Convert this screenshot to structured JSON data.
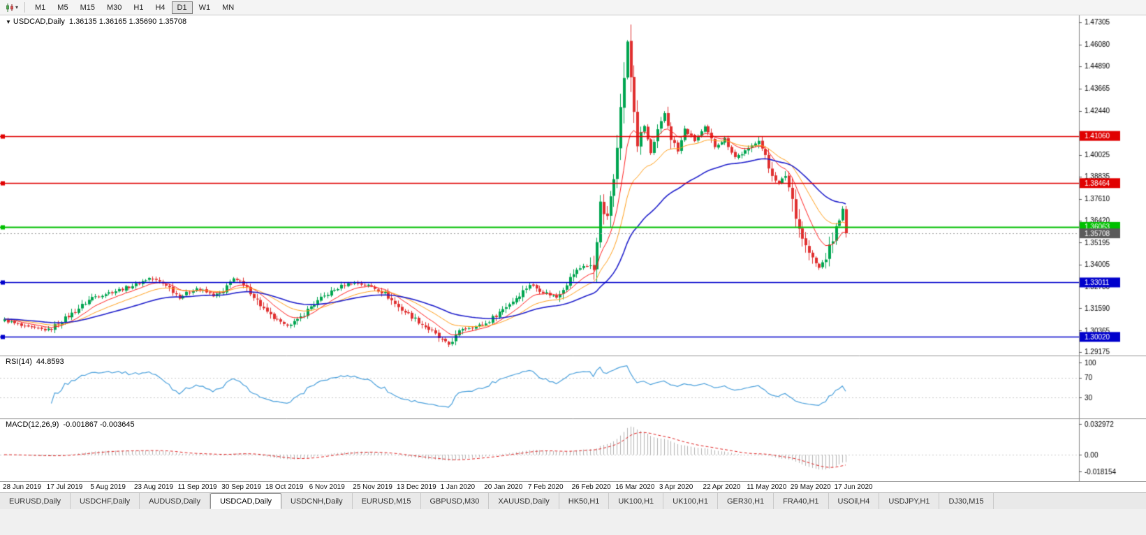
{
  "toolbar": {
    "chart_type_icon": "candlestick-chart-icon",
    "timeframes": [
      {
        "label": "M1",
        "active": false
      },
      {
        "label": "M5",
        "active": false
      },
      {
        "label": "M15",
        "active": false
      },
      {
        "label": "M30",
        "active": false
      },
      {
        "label": "H1",
        "active": false
      },
      {
        "label": "H4",
        "active": false
      },
      {
        "label": "D1",
        "active": true
      },
      {
        "label": "W1",
        "active": false
      },
      {
        "label": "MN",
        "active": false
      }
    ]
  },
  "panels": {
    "main": {
      "symbol": "USDCAD,Daily",
      "ohlc": "1.36135 1.36165 1.35690 1.35708"
    },
    "rsi": {
      "label": "RSI(14)",
      "value": "44.8593"
    },
    "macd": {
      "label": "MACD(12,26,9)",
      "values": "-0.001867 -0.003645"
    }
  },
  "tabs": {
    "items": [
      {
        "label": "EURUSD,Daily",
        "active": false
      },
      {
        "label": "USDCHF,Daily",
        "active": false
      },
      {
        "label": "AUDUSD,Daily",
        "active": false
      },
      {
        "label": "USDCAD,Daily",
        "active": true
      },
      {
        "label": "USDCNH,Daily",
        "active": false
      },
      {
        "label": "EURUSD,M15",
        "active": false
      },
      {
        "label": "GBPUSD,M30",
        "active": false
      },
      {
        "label": "XAUUSD,Daily",
        "active": false
      },
      {
        "label": "HK50,H1",
        "active": false
      },
      {
        "label": "UK100,H1",
        "active": false
      },
      {
        "label": "UK100,H1",
        "active": false
      },
      {
        "label": "GER30,H1",
        "active": false
      },
      {
        "label": "FRA40,H1",
        "active": false
      },
      {
        "label": "USOil,H4",
        "active": false
      },
      {
        "label": "USDJPY,H1",
        "active": false
      },
      {
        "label": "DJ30,M15",
        "active": false
      }
    ]
  },
  "chart_data": {
    "type": "candlestick",
    "symbol": "USDCAD",
    "timeframe": "Daily",
    "candle_count": 251,
    "bar_spacing": 4.82,
    "last_close": 1.35708,
    "price_axis": {
      "top": 1.4768,
      "bottom": 1.29,
      "ticks": [
        "1.47305",
        "1.46080",
        "1.44890",
        "1.43665",
        "1.42440",
        "1.40025",
        "1.38835",
        "1.37610",
        "1.36420",
        "1.35195",
        "1.34005",
        "1.32780",
        "1.31590",
        "1.30365",
        "1.29175"
      ]
    },
    "close_path": [
      [
        0,
        1.3095
      ],
      [
        6,
        1.3055
      ],
      [
        13,
        1.304
      ],
      [
        20,
        1.313
      ],
      [
        26,
        1.322
      ],
      [
        33,
        1.3255
      ],
      [
        39,
        1.329
      ],
      [
        43,
        1.3325
      ],
      [
        48,
        1.329
      ],
      [
        52,
        1.322
      ],
      [
        57,
        1.327
      ],
      [
        62,
        1.323
      ],
      [
        65,
        1.3245
      ],
      [
        68,
        1.333
      ],
      [
        73,
        1.325
      ],
      [
        78,
        1.313
      ],
      [
        83,
        1.3065
      ],
      [
        87,
        1.309
      ],
      [
        91,
        1.317
      ],
      [
        96,
        1.324
      ],
      [
        101,
        1.329
      ],
      [
        104,
        1.33
      ],
      [
        109,
        1.328
      ],
      [
        113,
        1.324
      ],
      [
        117,
        1.3165
      ],
      [
        122,
        1.31
      ],
      [
        127,
        1.303
      ],
      [
        130,
        1.298
      ],
      [
        132,
        1.296
      ],
      [
        136,
        1.305
      ],
      [
        140,
        1.306
      ],
      [
        143,
        1.3075
      ],
      [
        147,
        1.314
      ],
      [
        151,
        1.32
      ],
      [
        156,
        1.329
      ],
      [
        160,
        1.325
      ],
      [
        164,
        1.322
      ],
      [
        169,
        1.335
      ],
      [
        172,
        1.3395
      ],
      [
        175,
        1.338
      ],
      [
        177,
        1.372
      ],
      [
        179,
        1.365
      ],
      [
        181,
        1.39
      ],
      [
        183,
        1.425
      ],
      [
        185,
        1.462
      ],
      [
        186,
        1.443
      ],
      [
        188,
        1.406
      ],
      [
        190,
        1.416
      ],
      [
        192,
        1.401
      ],
      [
        194,
        1.412
      ],
      [
        196,
        1.423
      ],
      [
        198,
        1.41
      ],
      [
        200,
        1.402
      ],
      [
        202,
        1.414
      ],
      [
        205,
        1.408
      ],
      [
        208,
        1.415
      ],
      [
        211,
        1.405
      ],
      [
        214,
        1.409
      ],
      [
        217,
        1.399
      ],
      [
        221,
        1.403
      ],
      [
        224,
        1.409
      ],
      [
        227,
        1.393
      ],
      [
        230,
        1.384
      ],
      [
        232,
        1.389
      ],
      [
        234,
        1.376
      ],
      [
        236,
        1.36
      ],
      [
        238,
        1.35
      ],
      [
        240,
        1.343
      ],
      [
        242,
        1.338
      ],
      [
        244,
        1.344
      ],
      [
        246,
        1.354
      ],
      [
        248,
        1.365
      ],
      [
        249,
        1.37
      ],
      [
        250,
        1.35708
      ]
    ],
    "moving_averages": [
      {
        "period": 10,
        "color": "#ff2020",
        "width": 1
      },
      {
        "period": 21,
        "color": "#ff9f1a",
        "width": 1
      },
      {
        "period": 45,
        "color": "#2020cc",
        "width": 1.6
      }
    ],
    "levels": [
      {
        "price": 1.4106,
        "label": "1.41060",
        "color": "#e00000",
        "width": 1.6,
        "badge": true,
        "handle": true
      },
      {
        "price": 1.38464,
        "label": "1.38464",
        "color": "#e00000",
        "width": 1.6,
        "badge": true,
        "handle": true
      },
      {
        "price": 1.36063,
        "label": "1.36063",
        "color": "#00c000",
        "width": 2,
        "badge": true,
        "handle": true
      },
      {
        "price": 1.35708,
        "label": "1.35708",
        "color": "#9a9a9a",
        "width": 1,
        "style": "dotted",
        "badge": true,
        "badge_color": "#5a5a5a"
      },
      {
        "price": 1.33011,
        "label": "1.33011",
        "color": "#0000cc",
        "width": 1.6,
        "badge": true,
        "handle": true
      },
      {
        "price": 1.3002,
        "label": "1.30020",
        "color": "#0000cc",
        "width": 1.6,
        "badge": true,
        "handle": true
      }
    ],
    "x_axis": {
      "labels": [
        "28 Jun 2019",
        "17 Jul 2019",
        "5 Aug 2019",
        "23 Aug 2019",
        "11 Sep 2019",
        "30 Sep 2019",
        "18 Oct 2019",
        "6 Nov 2019",
        "25 Nov 2019",
        "13 Dec 2019",
        "1 Jan 2020",
        "20 Jan 2020",
        "7 Feb 2020",
        "26 Feb 2020",
        "16 Mar 2020",
        "3 Apr 2020",
        "22 Apr 2020",
        "11 May 2020",
        "29 May 2020",
        "17 Jun 2020"
      ]
    },
    "colors": {
      "up": "#00a550",
      "down": "#e03030",
      "background": "#ffffff",
      "axis_text": "#000000"
    },
    "rsi": {
      "period": 14,
      "line_color": "#4aa0dc",
      "grid": [
        70,
        30
      ],
      "ticks": [
        {
          "v": 100,
          "label": "100"
        },
        {
          "v": 70,
          "label": "70"
        },
        {
          "v": 30,
          "label": "30"
        }
      ]
    },
    "macd": {
      "fast": 12,
      "slow": 26,
      "signal": 9,
      "hist_color": "#b3b3b3",
      "signal_color": "#e02020",
      "ticks": [
        {
          "v": 0.032972,
          "label": "0.032972"
        },
        {
          "v": 0,
          "label": "0.00"
        },
        {
          "v": -0.018154,
          "label": "-0.018154"
        }
      ]
    }
  }
}
